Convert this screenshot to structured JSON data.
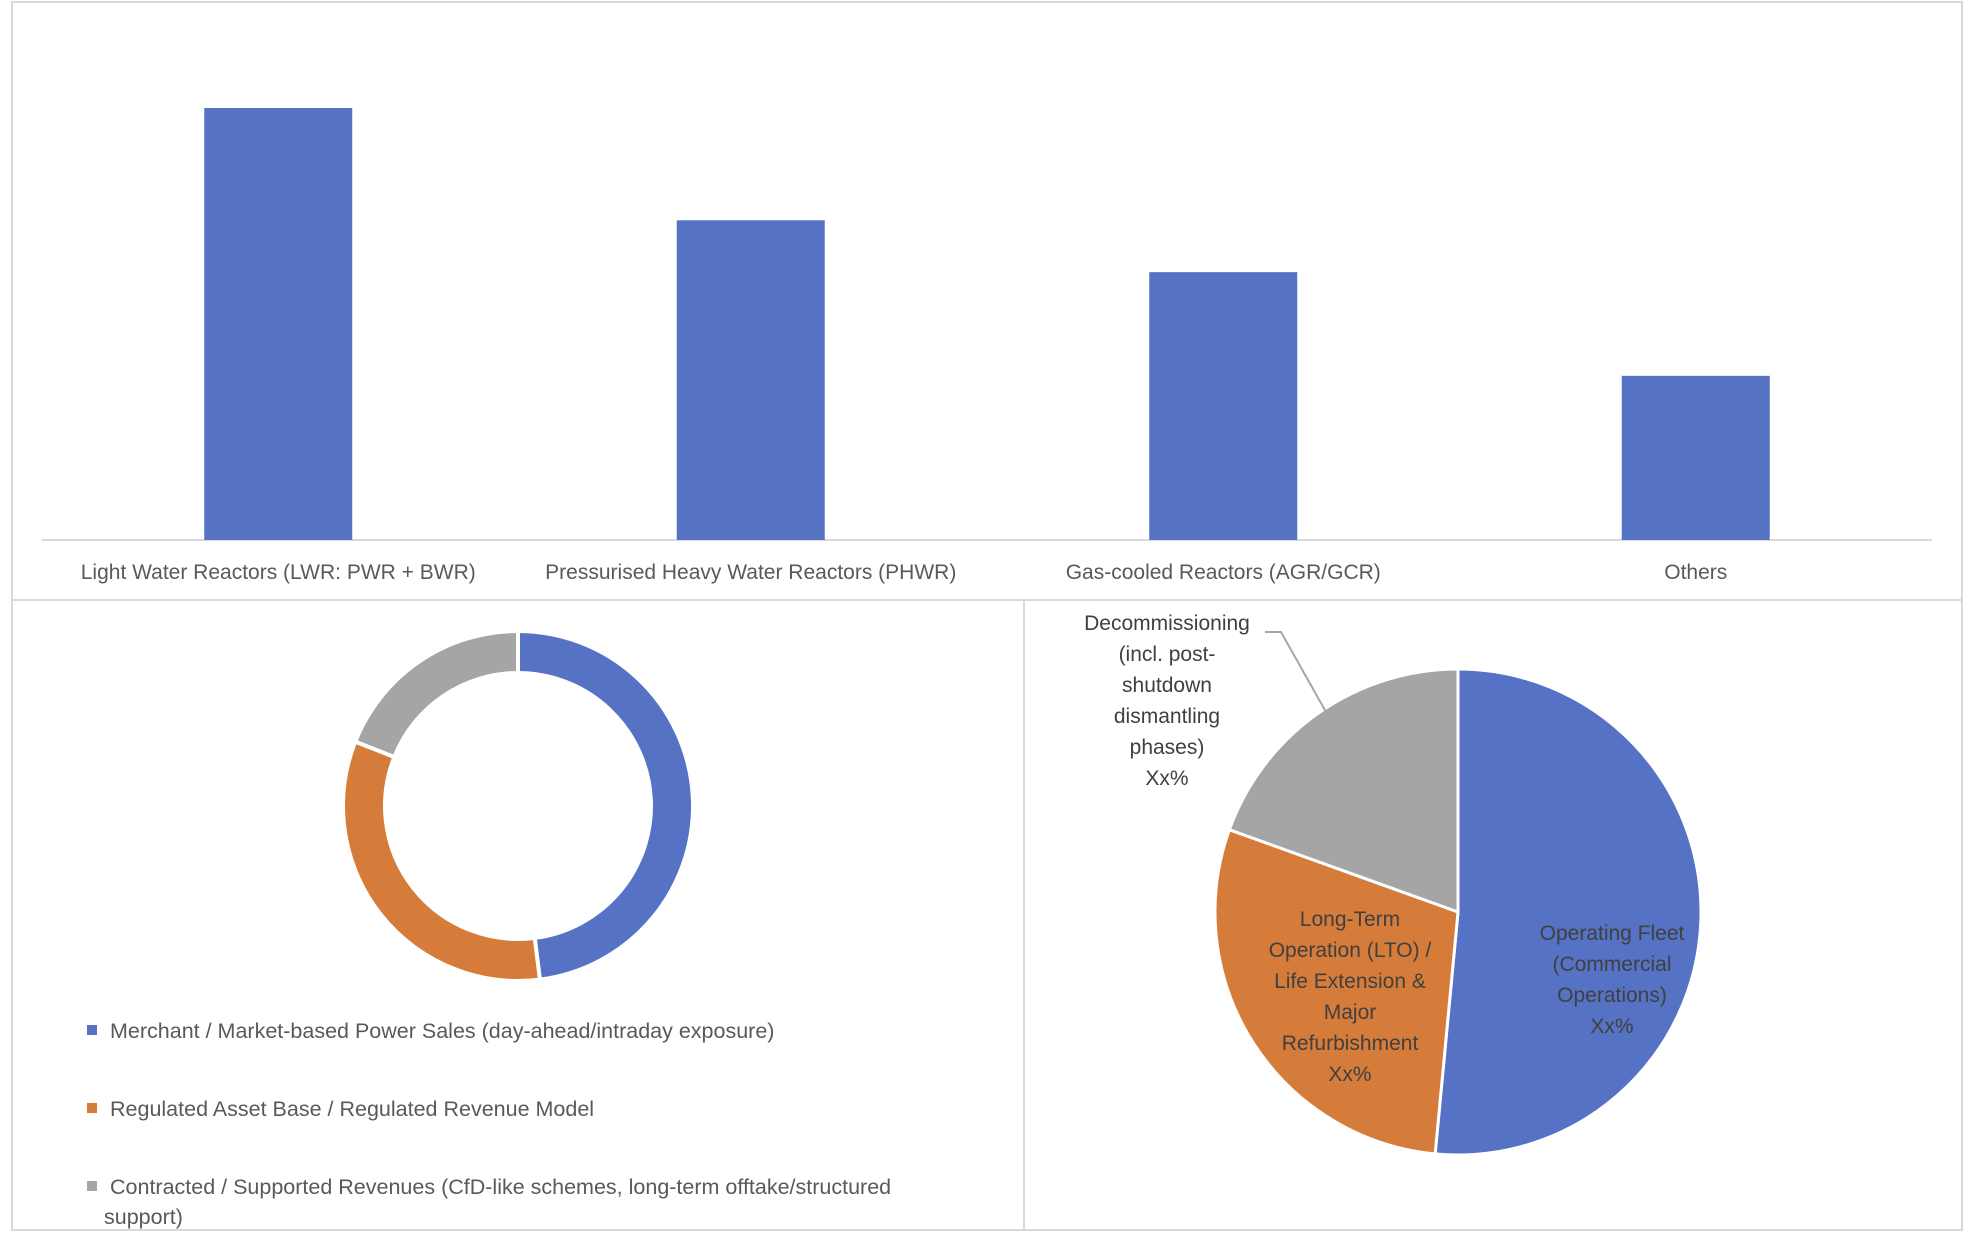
{
  "chart_data": [
    {
      "type": "bar",
      "title": "",
      "categories": [
        "Light Water Reactors (LWR: PWR + BWR)",
        "Pressurised Heavy Water Reactors (PHWR)",
        "Gas-cooled Reactors (AGR/GCR)",
        "Others"
      ],
      "values": [
        100,
        74,
        62,
        38
      ],
      "ylim": [
        0,
        100
      ],
      "grid": false,
      "legend": "none",
      "colors": [
        "#5572C4"
      ]
    },
    {
      "type": "pie",
      "variant": "donut",
      "title": "",
      "labels": [
        "Merchant / Market-based Power Sales (day-ahead/intraday exposure)",
        "Regulated Asset Base / Regulated Revenue Model",
        "Contracted / Supported Revenues (CfD-like schemes, long-term offtake/structured support)"
      ],
      "values": [
        48,
        33,
        19
      ],
      "colors": [
        "#5572C4",
        "#D67C3A",
        "#A5A5A5"
      ],
      "legend": "bottom-left"
    },
    {
      "type": "pie",
      "title": "",
      "labels": [
        "Operating Fleet (Commercial Operations)",
        "Long-Term Operation (LTO) / Life Extension & Major Refurbishment",
        "Decommissioning (incl. post-shutdown dismantling phases)"
      ],
      "label_lines": [
        [
          "Operating Fleet",
          "(Commercial",
          "Operations)",
          "Xx%"
        ],
        [
          "Long-Term",
          "Operation (LTO) /",
          "Life Extension &",
          "Major",
          "Refurbishment",
          "Xx%"
        ],
        [
          "Decommissioning",
          "(incl. post-",
          "shutdown",
          "dismantling",
          "phases)",
          "Xx%"
        ]
      ],
      "data_labels": [
        "Xx%",
        "Xx%",
        "Xx%"
      ],
      "values": [
        51.5,
        29,
        19.5
      ],
      "colors": [
        "#5572C4",
        "#D67C3A",
        "#A5A5A5"
      ],
      "legend": "none"
    }
  ]
}
